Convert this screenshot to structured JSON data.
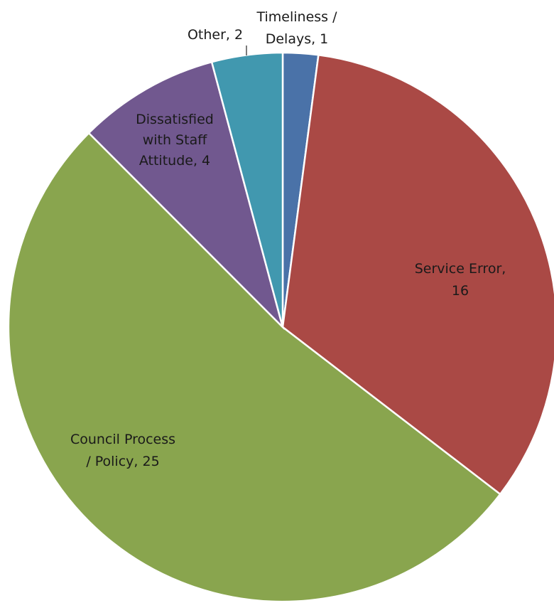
{
  "chart_data": {
    "type": "pie",
    "title": "",
    "start": "12 o'clock",
    "direction": "clockwise",
    "legend": "none",
    "slices": [
      {
        "label": "Timeliness / Delays",
        "value": 1,
        "color": "#4a72a8",
        "label_lines": [
          "Timeliness /",
          "Delays, 1"
        ]
      },
      {
        "label": "Service Error",
        "value": 16,
        "color": "#aa4945",
        "label_lines": [
          "Service Error,",
          "16"
        ]
      },
      {
        "label": "Council Process / Policy",
        "value": 25,
        "color": "#89a54e",
        "label_lines": [
          "Council Process",
          "/ Policy, 25"
        ]
      },
      {
        "label": "Dissatisfied with Staff Attitude",
        "value": 4,
        "color": "#71588f",
        "label_lines": [
          "Dissatisfied",
          "with Staff",
          "Attitude, 4"
        ]
      },
      {
        "label": "Other",
        "value": 2,
        "color": "#4198af",
        "label_lines": [
          "Other, 2"
        ]
      }
    ]
  }
}
